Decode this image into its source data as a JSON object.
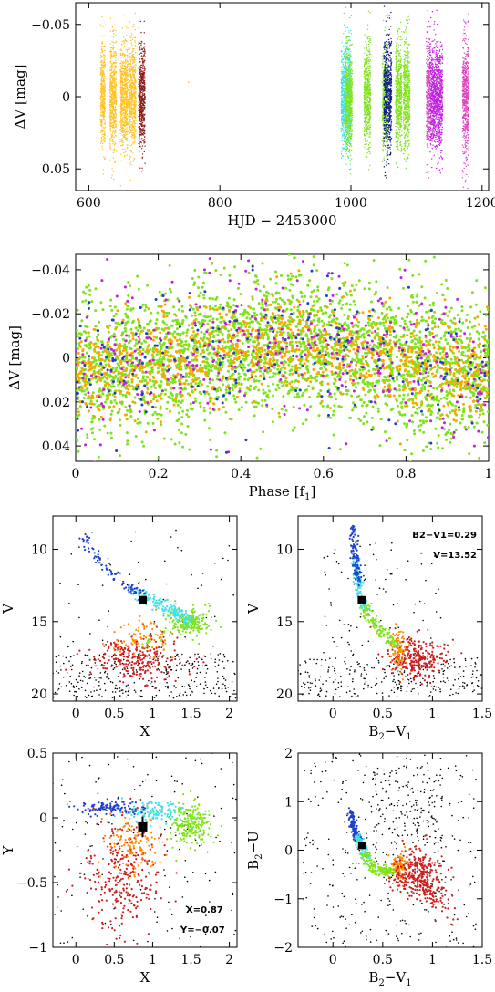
{
  "colors": {
    "black": "#000000",
    "red": "#cc1f1f",
    "darkred": "#8b1a1a",
    "orange": "#ff8c00",
    "amber": "#ffa500",
    "gold": "#ffc125",
    "green": "#7fe31a",
    "cyan": "#40e0e8",
    "blue": "#1f3fcc",
    "darkblue": "#0a1a9c",
    "purple": "#c020e0",
    "magenta": "#e040c0",
    "navy": "#102080"
  },
  "chart_data": [
    {
      "id": "lc-time",
      "type": "scatter",
      "xlabel": "HJD − 2453000",
      "ylabel": "ΔV [mag]",
      "xlim": [
        580,
        1210
      ],
      "ylim": [
        0.065,
        -0.065
      ],
      "xticks": [
        600,
        800,
        1000,
        1200
      ],
      "yticks": [
        -0.05,
        0,
        0.05
      ],
      "yticklabels": [
        "−0.05",
        "0",
        "0.05"
      ],
      "series": [
        {
          "color": "gold",
          "ranges": [
            [
              618,
              625
            ],
            [
              632,
              642
            ],
            [
              648,
              660
            ],
            [
              662,
              672
            ]
          ],
          "sd": 0.018
        },
        {
          "color": "darkred",
          "ranges": [
            [
              676,
              686
            ]
          ],
          "sd": 0.018
        },
        {
          "color": "cyan",
          "ranges": [
            [
              985,
              1000
            ]
          ],
          "sd": 0.018
        },
        {
          "color": "green",
          "ranges": [
            [
              990,
              1002
            ],
            [
              1020,
              1030
            ],
            [
              1048,
              1056
            ],
            [
              1068,
              1078
            ],
            [
              1080,
              1090
            ]
          ],
          "sd": 0.018
        },
        {
          "color": "navy",
          "ranges": [
            [
              1050,
              1062
            ]
          ],
          "sd": 0.02
        },
        {
          "color": "purple",
          "ranges": [
            [
              1120,
              1140
            ]
          ],
          "sd": 0.018
        },
        {
          "color": "magenta",
          "ranges": [
            [
              1115,
              1120
            ],
            [
              1170,
              1180
            ]
          ],
          "sd": 0.02
        }
      ]
    },
    {
      "id": "lc-phase",
      "type": "scatter",
      "xlabel": "Phase [f1]",
      "ylabel": "ΔV [mag]",
      "xlim": [
        0,
        1
      ],
      "ylim": [
        0.047,
        -0.047
      ],
      "xticks": [
        0,
        0.2,
        0.4,
        0.6,
        0.8,
        1
      ],
      "xticklabels": [
        "0",
        "0.2",
        "0.4",
        "0.6",
        "0.8",
        "1"
      ],
      "yticks": [
        -0.04,
        -0.02,
        0,
        0.02,
        0.04
      ],
      "yticklabels": [
        "−0.04",
        "−0.02",
        "0",
        "0.02",
        "0.04"
      ],
      "model": "delta_v = 0.006*cos(2*pi*phase) + noise(sd=0.016)",
      "series": [
        {
          "color": "green",
          "n": 3000
        },
        {
          "color": "amber",
          "n": 1100
        },
        {
          "color": "purple",
          "n": 350
        },
        {
          "color": "blue",
          "n": 250
        }
      ]
    },
    {
      "id": "cmd-x",
      "type": "scatter",
      "xlabel": "X",
      "ylabel": "V",
      "xlim": [
        -0.3,
        2.1
      ],
      "ylim": [
        20.5,
        7.7
      ],
      "xticks": [
        0,
        0.5,
        1,
        1.5,
        2
      ],
      "xticklabels": [
        "0",
        "0.5",
        "1",
        "1.5",
        "2"
      ],
      "yticks": [
        10,
        15,
        20
      ],
      "yticklabels": [
        "10",
        "15",
        "20"
      ],
      "marker": {
        "x": 0.87,
        "y": 13.52
      }
    },
    {
      "id": "cmd-b2v1",
      "type": "scatter",
      "xlabel": "B2−V1",
      "ylabel": "V",
      "xlim": [
        -0.35,
        1.5
      ],
      "ylim": [
        20.5,
        7.7
      ],
      "xticks": [
        0,
        0.5,
        1,
        1.5
      ],
      "xticklabels": [
        "0",
        "0.5",
        "1",
        "1.5"
      ],
      "yticks": [
        10,
        15,
        20
      ],
      "yticklabels": [
        "10",
        "15",
        "20"
      ],
      "marker": {
        "x": 0.29,
        "y": 13.52
      },
      "annotations": [
        "B2−V1=0.29",
        "V=13.52"
      ]
    },
    {
      "id": "xy-diagram",
      "type": "scatter",
      "xlabel": "X",
      "ylabel": "Y",
      "xlim": [
        -0.3,
        2.1
      ],
      "ylim": [
        -1,
        0.5
      ],
      "xticks": [
        0,
        0.5,
        1,
        1.5,
        2
      ],
      "xticklabels": [
        "0",
        "0.5",
        "1",
        "1.5",
        "2"
      ],
      "yticks": [
        0.5,
        0,
        -0.5,
        -1
      ],
      "yticklabels": [
        "0.5",
        "0",
        "−0.5",
        "−1"
      ],
      "marker": {
        "x": 0.87,
        "y": -0.07
      },
      "annotations": [
        "X=0.87",
        "Y=−0.07"
      ]
    },
    {
      "id": "cc-diagram",
      "type": "scatter",
      "xlabel": "B2−V1",
      "ylabel": "B2−U",
      "xlim": [
        -0.35,
        1.5
      ],
      "ylim": [
        -2,
        2
      ],
      "xticks": [
        0,
        0.5,
        1,
        1.5
      ],
      "xticklabels": [
        "0",
        "0.5",
        "1",
        "1.5"
      ],
      "yticks": [
        2,
        1,
        0,
        -1,
        -2
      ],
      "yticklabels": [
        "2",
        "1",
        "0",
        "−1",
        "−2"
      ],
      "marker": {
        "x": 0.29,
        "y": 0.1
      }
    }
  ]
}
